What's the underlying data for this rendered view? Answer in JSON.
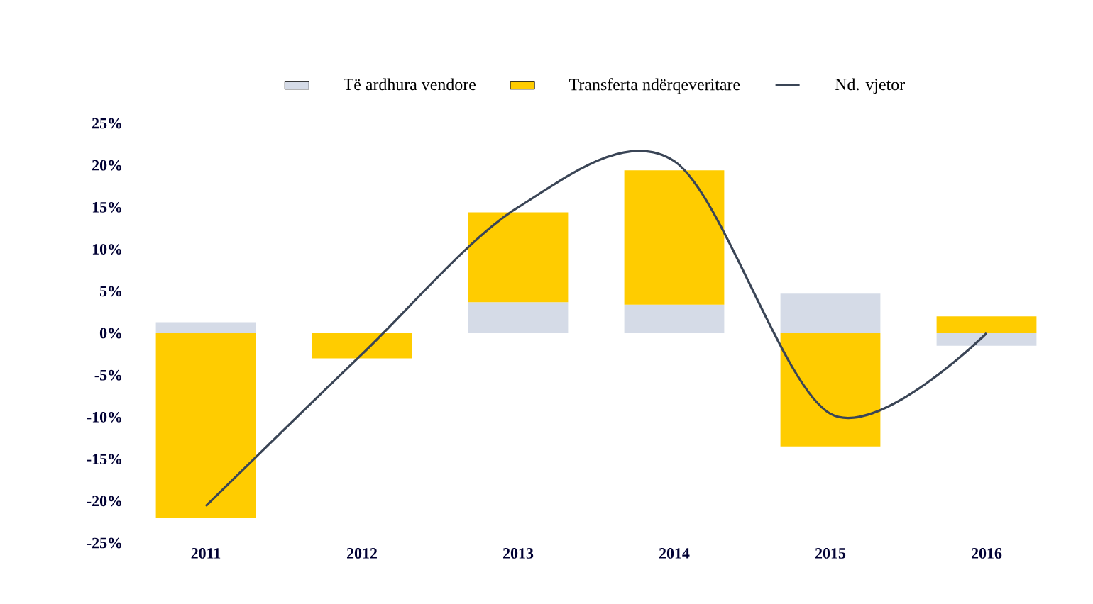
{
  "chart_data": {
    "type": "bar",
    "stacked": true,
    "legend": "top",
    "categories": [
      "2011",
      "2012",
      "2013",
      "2014",
      "2015",
      "2016"
    ],
    "series": [
      {
        "name": "Të ardhura vendore",
        "color": "#d5dbe7",
        "values": [
          1.3,
          null,
          3.7,
          3.4,
          4.7,
          -1.5
        ]
      },
      {
        "name": "Transferta ndërqeveritare",
        "color": "#ffcc00",
        "values": [
          -22,
          -3,
          10.7,
          16,
          -13.5,
          2
        ]
      },
      {
        "name": "Nd. vjetor",
        "type": "line",
        "color": "#3a4556",
        "values": [
          -20.6,
          -2.5,
          15,
          20.5,
          -9.6,
          0
        ]
      }
    ],
    "ylim": [
      -25,
      25
    ],
    "yticks": [
      {
        "value": 25,
        "label": "25%"
      },
      {
        "value": 20,
        "label": "20%"
      },
      {
        "value": 15,
        "label": "15%"
      },
      {
        "value": 10,
        "label": "10%"
      },
      {
        "value": 5,
        "label": "5%"
      },
      {
        "value": 0,
        "label": "0%"
      },
      {
        "value": -5,
        "label": "-5%"
      },
      {
        "value": -10,
        "label": "-10%"
      },
      {
        "value": -15,
        "label": "-15%"
      },
      {
        "value": -20,
        "label": "-20%"
      },
      {
        "value": -25,
        "label": "-25%"
      }
    ]
  }
}
